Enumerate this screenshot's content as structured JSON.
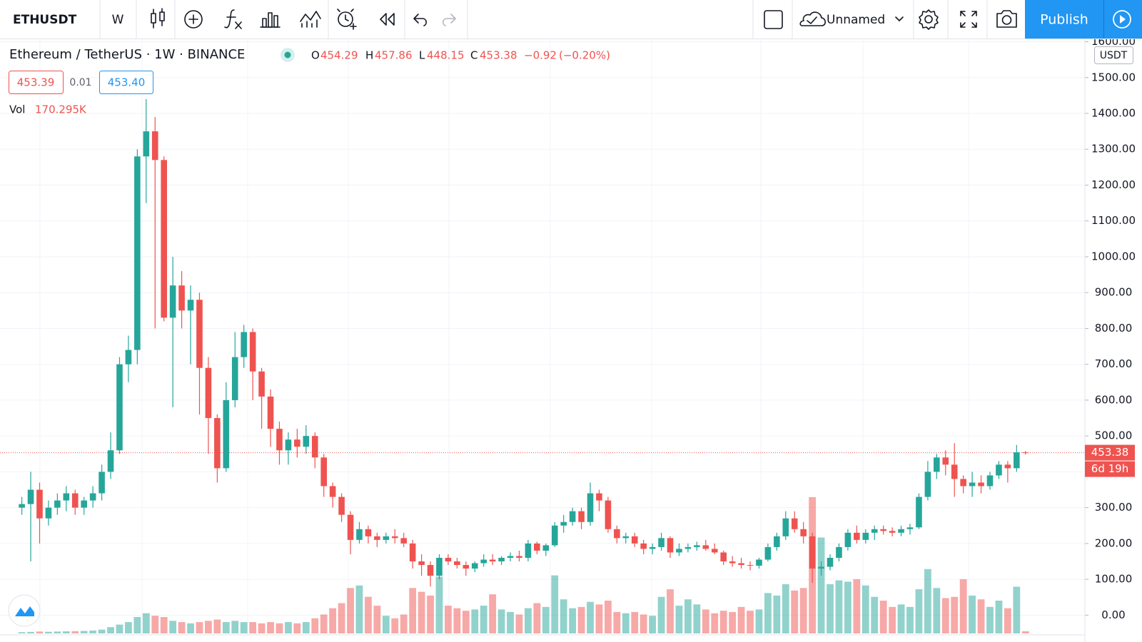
{
  "toolbar": {
    "symbol": "ETHUSDT",
    "interval": "W",
    "layout_name": "Unnamed",
    "publish": "Publish"
  },
  "header": {
    "title": "Ethereum / TetherUS · 1W · BINANCE",
    "readout_labels": [
      "O",
      "H",
      "L",
      "C"
    ],
    "change": {
      "value": -0.92,
      "label": "−0.92"
    },
    "change_pct": {
      "value": -0.2,
      "label": "(−0.20%)"
    },
    "bid": 453.39,
    "spread": 0.01,
    "ask": {
      "value": 453.4,
      "label": "453.40"
    },
    "vol_label": "Vol",
    "vol_value": "170.295K"
  },
  "chart_data": {
    "type": "candlestick",
    "currency": "USDT",
    "countdown": "6d 19h",
    "up_color": "#26a69a",
    "down_color": "#ef5350",
    "grid": true,
    "ylim": [
      -51,
      1609
    ],
    "yticks": [
      {
        "value": 0,
        "label": "0.00"
      },
      {
        "value": 100,
        "label": "100.00"
      },
      {
        "value": 200,
        "label": "200.00"
      },
      {
        "value": 300,
        "label": "300.00"
      },
      {
        "value": 400,
        "label": "400.00"
      },
      {
        "value": 500,
        "label": "500.00"
      },
      {
        "value": 600,
        "label": "600.00"
      },
      {
        "value": 700,
        "label": "700.00"
      },
      {
        "value": 800,
        "label": "800.00"
      },
      {
        "value": 900,
        "label": "900.00"
      },
      {
        "value": 1000,
        "label": "1000.00"
      },
      {
        "value": 1100,
        "label": "1100.00"
      },
      {
        "value": 1200,
        "label": "1200.00"
      },
      {
        "value": 1300,
        "label": "1300.00"
      },
      {
        "value": 1400,
        "label": "1400.00"
      },
      {
        "value": 1500,
        "label": "1500.00"
      },
      {
        "value": 1600,
        "label": "1600.00"
      }
    ],
    "volume_lim": [
      0,
      13000
    ],
    "open": [
      300,
      310,
      350,
      270,
      300,
      320,
      340,
      300,
      320,
      340,
      400,
      460,
      700,
      740,
      1280,
      1350,
      1270,
      830,
      920,
      850,
      880,
      690,
      550,
      410,
      600,
      720,
      790,
      680,
      610,
      520,
      460,
      490,
      470,
      500,
      440,
      360,
      330,
      280,
      210,
      240,
      220,
      210,
      220,
      215,
      200,
      150,
      140,
      110,
      160,
      150,
      140,
      130,
      145,
      155,
      150,
      160,
      165,
      160,
      200,
      180,
      195,
      250,
      260,
      290,
      260,
      340,
      320,
      240,
      215,
      220,
      200,
      185,
      190,
      215,
      175,
      185,
      190,
      195,
      185,
      175,
      150,
      145,
      140,
      138,
      155,
      190,
      220,
      270,
      240,
      220,
      130,
      135,
      160,
      190,
      230,
      210,
      230,
      240,
      235,
      230,
      240,
      245,
      330,
      400,
      440,
      420,
      380,
      360,
      370,
      360,
      390,
      420,
      410,
      454.29
    ],
    "high": [
      330,
      400,
      370,
      320,
      340,
      360,
      350,
      330,
      360,
      420,
      510,
      720,
      780,
      1300,
      1440,
      1390,
      1280,
      1000,
      960,
      920,
      900,
      720,
      560,
      650,
      790,
      810,
      800,
      690,
      630,
      540,
      510,
      520,
      530,
      510,
      450,
      370,
      340,
      290,
      260,
      250,
      230,
      230,
      240,
      230,
      210,
      170,
      150,
      170,
      170,
      160,
      150,
      150,
      170,
      170,
      165,
      175,
      180,
      210,
      205,
      200,
      260,
      280,
      300,
      300,
      370,
      350,
      330,
      250,
      230,
      230,
      210,
      200,
      230,
      220,
      200,
      200,
      205,
      210,
      200,
      180,
      165,
      160,
      150,
      160,
      200,
      230,
      290,
      290,
      260,
      230,
      150,
      170,
      200,
      240,
      250,
      240,
      250,
      250,
      245,
      250,
      255,
      340,
      430,
      450,
      460,
      480,
      390,
      400,
      390,
      400,
      430,
      430,
      475,
      457.86
    ],
    "low": [
      280,
      150,
      200,
      250,
      280,
      290,
      280,
      280,
      300,
      320,
      380,
      450,
      650,
      700,
      1150,
      800,
      820,
      580,
      800,
      700,
      560,
      450,
      370,
      400,
      580,
      690,
      600,
      520,
      470,
      420,
      420,
      440,
      450,
      410,
      330,
      300,
      260,
      170,
      200,
      200,
      190,
      200,
      200,
      190,
      130,
      110,
      80,
      100,
      140,
      130,
      110,
      120,
      135,
      140,
      140,
      150,
      150,
      150,
      170,
      165,
      190,
      230,
      250,
      240,
      250,
      290,
      230,
      200,
      200,
      190,
      170,
      170,
      180,
      160,
      165,
      175,
      180,
      180,
      170,
      140,
      135,
      130,
      125,
      130,
      150,
      180,
      210,
      230,
      200,
      90,
      110,
      125,
      150,
      180,
      200,
      200,
      210,
      225,
      220,
      220,
      225,
      240,
      320,
      380,
      390,
      330,
      340,
      330,
      340,
      350,
      380,
      370,
      400,
      448.15
    ],
    "close": [
      310,
      350,
      270,
      300,
      320,
      340,
      300,
      320,
      340,
      400,
      460,
      700,
      740,
      1280,
      1350,
      1270,
      830,
      920,
      850,
      880,
      690,
      550,
      410,
      600,
      720,
      790,
      680,
      610,
      520,
      460,
      490,
      470,
      500,
      440,
      360,
      330,
      280,
      210,
      240,
      220,
      210,
      220,
      215,
      200,
      150,
      140,
      110,
      160,
      150,
      140,
      130,
      145,
      155,
      150,
      160,
      165,
      160,
      200,
      180,
      195,
      250,
      260,
      290,
      260,
      340,
      320,
      240,
      215,
      220,
      200,
      185,
      190,
      215,
      175,
      185,
      190,
      195,
      185,
      175,
      150,
      145,
      140,
      138,
      155,
      190,
      220,
      270,
      240,
      220,
      130,
      135,
      160,
      190,
      230,
      210,
      230,
      240,
      235,
      230,
      240,
      245,
      330,
      400,
      440,
      420,
      380,
      360,
      370,
      360,
      390,
      420,
      410,
      454.29,
      453.38
    ],
    "volume": [
      100,
      120,
      150,
      130,
      150,
      170,
      180,
      200,
      230,
      300,
      500,
      700,
      900,
      1300,
      1600,
      1400,
      1300,
      1000,
      900,
      800,
      900,
      1000,
      1100,
      900,
      1000,
      900,
      900,
      800,
      900,
      800,
      900,
      800,
      900,
      1200,
      1500,
      2000,
      2400,
      3600,
      3800,
      2900,
      2200,
      1400,
      1200,
      1500,
      3600,
      3300,
      3000,
      4500,
      2200,
      2000,
      1800,
      1900,
      2200,
      3100,
      1900,
      1700,
      1500,
      2000,
      2400,
      2100,
      4600,
      2700,
      2000,
      2100,
      2500,
      2300,
      2600,
      1700,
      1600,
      1700,
      1500,
      1400,
      2900,
      3500,
      2200,
      2700,
      2300,
      1900,
      1600,
      1800,
      1700,
      2100,
      1800,
      1900,
      3200,
      3000,
      3900,
      3400,
      3600,
      10800,
      7600,
      3900,
      4200,
      4100,
      4300,
      3800,
      2900,
      2600,
      2100,
      2300,
      2100,
      3500,
      5100,
      3600,
      2800,
      2900,
      4300,
      3000,
      2700,
      2100,
      2600,
      2000,
      3700,
      170.295
    ]
  }
}
